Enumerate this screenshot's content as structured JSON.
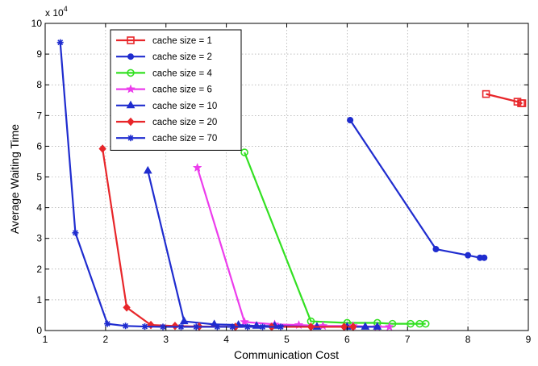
{
  "chart_data": {
    "type": "line",
    "xlabel": "Communication Cost",
    "ylabel": "Average Waiting Time",
    "y_multiplier_label": "x 10",
    "y_multiplier_exp": "4",
    "xlim": [
      1,
      9
    ],
    "ylim": [
      0,
      10
    ],
    "xticks": [
      "1",
      "2",
      "3",
      "4",
      "5",
      "6",
      "7",
      "8",
      "9"
    ],
    "yticks": [
      "0",
      "1",
      "2",
      "3",
      "4",
      "5",
      "6",
      "7",
      "8",
      "9",
      "10"
    ],
    "grid": true,
    "legend_position": "top-left",
    "series": [
      {
        "name": "cache size = 1",
        "color": "#e8262a",
        "marker": "square",
        "x": [
          8.3,
          8.82,
          8.88,
          8.9
        ],
        "y": [
          7.7,
          7.45,
          7.4,
          7.4
        ]
      },
      {
        "name": "cache size = 2",
        "color": "#1f2ccf",
        "marker": "dot",
        "x": [
          6.05,
          7.47,
          8.0,
          8.2,
          8.27
        ],
        "y": [
          6.85,
          2.65,
          2.45,
          2.37,
          2.37
        ]
      },
      {
        "name": "cache size = 4",
        "color": "#33e022",
        "marker": "circle",
        "x": [
          4.3,
          5.4,
          6.0,
          6.5,
          6.75,
          7.05,
          7.2,
          7.3
        ],
        "y": [
          5.8,
          0.3,
          0.25,
          0.25,
          0.22,
          0.22,
          0.22,
          0.22
        ]
      },
      {
        "name": "cache size = 6",
        "color": "#ec3cec",
        "marker": "star",
        "x": [
          3.52,
          4.3,
          4.8,
          5.2,
          5.6,
          6.1,
          6.5,
          6.7
        ],
        "y": [
          5.3,
          0.28,
          0.2,
          0.18,
          0.15,
          0.15,
          0.12,
          0.12
        ]
      },
      {
        "name": "cache size = 10",
        "color": "#1f2ccf",
        "marker": "triangle",
        "x": [
          2.7,
          3.3,
          3.8,
          4.2,
          4.5,
          4.8,
          5.5,
          6.0,
          6.3,
          6.5
        ],
        "y": [
          5.2,
          0.3,
          0.2,
          0.18,
          0.15,
          0.15,
          0.12,
          0.12,
          0.12,
          0.12
        ]
      },
      {
        "name": "cache size = 20",
        "color": "#e8262a",
        "marker": "diamond",
        "x": [
          1.95,
          2.35,
          2.75,
          3.15,
          3.55,
          4.15,
          4.75,
          5.4,
          5.95,
          6.1
        ],
        "y": [
          5.92,
          0.75,
          0.18,
          0.15,
          0.13,
          0.12,
          0.12,
          0.12,
          0.12,
          0.12
        ]
      },
      {
        "name": "cache size = 70",
        "color": "#1f2ccf",
        "marker": "asterisk",
        "x": [
          1.25,
          1.5,
          2.03,
          2.33,
          2.65,
          2.95,
          3.25,
          3.5,
          3.85,
          4.1,
          4.35,
          4.6,
          4.9
        ],
        "y": [
          9.38,
          3.18,
          0.22,
          0.15,
          0.13,
          0.12,
          0.12,
          0.12,
          0.12,
          0.12,
          0.12,
          0.12,
          0.12
        ]
      }
    ]
  }
}
